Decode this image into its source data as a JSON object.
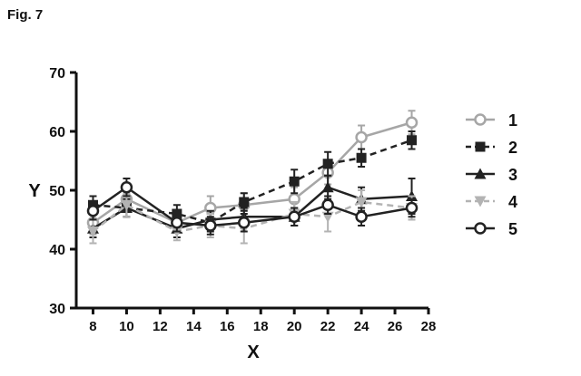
{
  "figure_label": "Fig. 7",
  "chart_data": {
    "type": "line",
    "xlabel": "X",
    "ylabel": "Y",
    "xlim": [
      7,
      28
    ],
    "ylim": [
      30,
      70
    ],
    "xticks": [
      8,
      10,
      12,
      14,
      16,
      18,
      20,
      22,
      24,
      26,
      28
    ],
    "yticks": [
      30,
      40,
      50,
      60,
      70
    ],
    "grid": false,
    "legend_position": "right",
    "x": [
      8,
      10,
      13,
      15,
      17,
      20,
      22,
      24,
      27
    ],
    "series": [
      {
        "name": "1",
        "marker": "circle-open",
        "line": "solid",
        "color": "#a6a6a6",
        "values": [
          44.5,
          48.5,
          44.5,
          47,
          47.5,
          48.5,
          53,
          59,
          61.5
        ],
        "errors": [
          2,
          2,
          1.5,
          2,
          2,
          2,
          2,
          2,
          2
        ]
      },
      {
        "name": "2",
        "marker": "square-filled",
        "line": "dashed",
        "color": "#222222",
        "values": [
          47.5,
          47,
          46,
          44.5,
          48,
          51.5,
          54.5,
          55.5,
          58.5
        ],
        "errors": [
          1.5,
          1.5,
          1.5,
          1.5,
          1.5,
          2,
          2,
          1.5,
          1.5
        ]
      },
      {
        "name": "3",
        "marker": "triangle-filled",
        "line": "solid",
        "color": "#222222",
        "values": [
          43.5,
          47,
          43.5,
          45,
          45.5,
          45.5,
          50.5,
          48.5,
          49
        ],
        "errors": [
          1.5,
          1.5,
          1.5,
          1.5,
          1.5,
          1.5,
          2,
          2,
          3
        ]
      },
      {
        "name": "4",
        "marker": "triangle-down-filled",
        "line": "dashed",
        "color": "#b3b3b3",
        "values": [
          43,
          47.5,
          43,
          44,
          43.5,
          46,
          45.5,
          48,
          47
        ],
        "errors": [
          2,
          2,
          1.5,
          2,
          2.5,
          2,
          2.5,
          2,
          2
        ]
      },
      {
        "name": "5",
        "marker": "circle-open",
        "line": "solid",
        "color": "#222222",
        "values": [
          46.5,
          50.5,
          44.5,
          44,
          44.5,
          45.5,
          47.5,
          45.5,
          47
        ],
        "errors": [
          1.5,
          1.5,
          1.5,
          1.5,
          1.5,
          1.5,
          1.5,
          1.5,
          1.5
        ]
      }
    ]
  }
}
